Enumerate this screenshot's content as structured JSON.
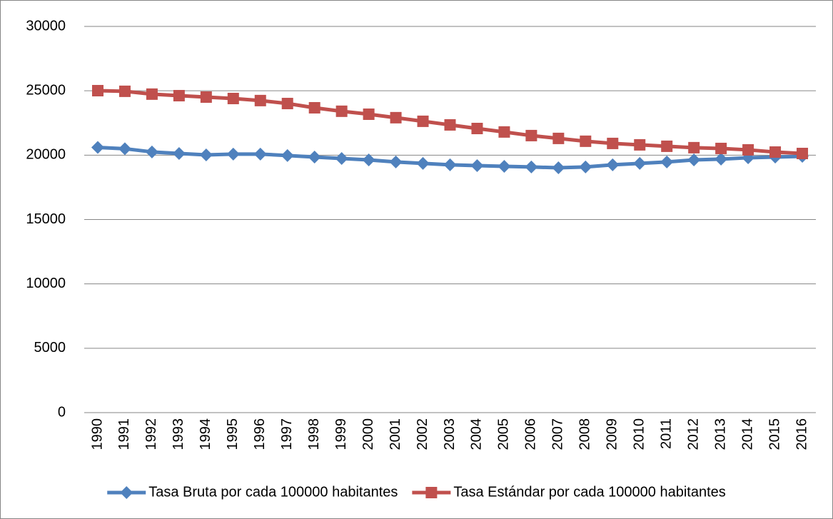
{
  "chart_data": {
    "type": "line",
    "categories": [
      "1990",
      "1991",
      "1992",
      "1993",
      "1994",
      "1995",
      "1996",
      "1997",
      "1998",
      "1999",
      "2000",
      "2001",
      "2002",
      "2003",
      "2004",
      "2005",
      "2006",
      "2007",
      "2008",
      "2009",
      "2010",
      "2011",
      "2012",
      "2013",
      "2014",
      "2015",
      "2016"
    ],
    "series": [
      {
        "name": "Tasa Bruta por cada 100000 habitantes",
        "color": "#4f81bd",
        "marker": "diamond",
        "values": [
          20600,
          20500,
          20250,
          20130,
          20020,
          20080,
          20080,
          19970,
          19850,
          19740,
          19630,
          19470,
          19360,
          19250,
          19190,
          19130,
          19080,
          19020,
          19080,
          19250,
          19360,
          19470,
          19630,
          19690,
          19800,
          19850,
          19910
        ]
      },
      {
        "name": "Tasa Estándar por cada 100000 habitantes",
        "color": "#c0504d",
        "marker": "square",
        "values": [
          25010,
          24960,
          24740,
          24620,
          24510,
          24400,
          24240,
          24010,
          23680,
          23410,
          23180,
          22910,
          22630,
          22350,
          22070,
          21800,
          21520,
          21300,
          21080,
          20910,
          20800,
          20690,
          20580,
          20520,
          20410,
          20240,
          20130
        ]
      }
    ],
    "ylim": [
      0,
      30000
    ],
    "yticks": [
      0,
      5000,
      10000,
      15000,
      20000,
      25000,
      30000
    ],
    "grid": true,
    "legend": "bottom"
  }
}
